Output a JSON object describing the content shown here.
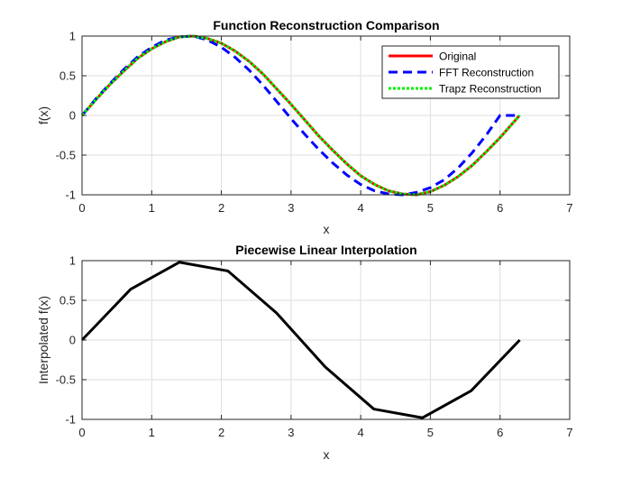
{
  "chart_data": [
    {
      "type": "line",
      "title": "Function Reconstruction Comparison",
      "xlabel": "x",
      "ylabel": "f(x)",
      "xlim": [
        0,
        7
      ],
      "ylim": [
        -1,
        1
      ],
      "xticks": [
        0,
        1,
        2,
        3,
        4,
        5,
        6,
        7
      ],
      "xtick_labels": [
        "0",
        "1",
        "2",
        "3",
        "4",
        "5",
        "6",
        "7"
      ],
      "yticks": [
        1,
        0.5,
        0,
        -0.5,
        -1
      ],
      "ytick_labels": [
        "1",
        "0.5",
        "0",
        "-0.5",
        "-1"
      ],
      "grid": true,
      "legend_position": "top-right",
      "series": [
        {
          "name": "Original",
          "color": "#ff0000",
          "style": "solid",
          "x": [
            0,
            0.2,
            0.4,
            0.6,
            0.8,
            1.0,
            1.2,
            1.4,
            1.6,
            1.8,
            2.0,
            2.2,
            2.4,
            2.6,
            2.8,
            3.0,
            3.2,
            3.4,
            3.6,
            3.8,
            4.0,
            4.2,
            4.4,
            4.6,
            4.8,
            5.0,
            5.2,
            5.4,
            5.6,
            5.8,
            6.0,
            6.28
          ],
          "y": [
            0,
            0.2,
            0.39,
            0.56,
            0.72,
            0.84,
            0.93,
            0.99,
            1.0,
            0.97,
            0.91,
            0.81,
            0.68,
            0.52,
            0.33,
            0.14,
            -0.06,
            -0.26,
            -0.44,
            -0.61,
            -0.76,
            -0.87,
            -0.95,
            -0.99,
            -1.0,
            -0.96,
            -0.88,
            -0.77,
            -0.63,
            -0.46,
            -0.28,
            0
          ]
        },
        {
          "name": "FFT Reconstruction",
          "color": "#0000ff",
          "style": "dashed",
          "x": [
            0,
            0.2,
            0.4,
            0.6,
            0.8,
            1.0,
            1.2,
            1.4,
            1.6,
            1.8,
            2.0,
            2.2,
            2.4,
            2.6,
            2.8,
            3.0,
            3.2,
            3.4,
            3.6,
            3.8,
            4.0,
            4.2,
            4.4,
            4.6,
            4.8,
            5.0,
            5.2,
            5.4,
            5.6,
            5.8,
            6.0,
            6.28
          ],
          "y": [
            0,
            0.21,
            0.4,
            0.58,
            0.74,
            0.86,
            0.95,
            0.99,
            1.0,
            0.95,
            0.86,
            0.73,
            0.57,
            0.38,
            0.17,
            -0.04,
            -0.24,
            -0.43,
            -0.6,
            -0.75,
            -0.87,
            -0.95,
            -0.99,
            -1.0,
            -0.97,
            -0.91,
            -0.81,
            -0.66,
            -0.47,
            -0.25,
            0,
            0
          ]
        },
        {
          "name": "Trapz Reconstruction",
          "color": "#00ee00",
          "style": "dotted",
          "x": [
            0,
            0.2,
            0.4,
            0.6,
            0.8,
            1.0,
            1.2,
            1.4,
            1.6,
            1.8,
            2.0,
            2.2,
            2.4,
            2.6,
            2.8,
            3.0,
            3.2,
            3.4,
            3.6,
            3.8,
            4.0,
            4.2,
            4.4,
            4.6,
            4.8,
            5.0,
            5.2,
            5.4,
            5.6,
            5.8,
            6.0,
            6.28
          ],
          "y": [
            0,
            0.2,
            0.39,
            0.56,
            0.72,
            0.84,
            0.93,
            0.99,
            1.0,
            0.97,
            0.91,
            0.81,
            0.68,
            0.52,
            0.33,
            0.14,
            -0.06,
            -0.26,
            -0.44,
            -0.61,
            -0.76,
            -0.87,
            -0.95,
            -0.99,
            -1.0,
            -0.96,
            -0.88,
            -0.77,
            -0.63,
            -0.46,
            -0.28,
            0
          ]
        }
      ]
    },
    {
      "type": "line",
      "title": "Piecewise Linear Interpolation",
      "xlabel": "x",
      "ylabel": "Interpolated f(x)",
      "xlim": [
        0,
        7
      ],
      "ylim": [
        -1,
        1
      ],
      "xticks": [
        0,
        1,
        2,
        3,
        4,
        5,
        6,
        7
      ],
      "xtick_labels": [
        "0",
        "1",
        "2",
        "3",
        "4",
        "5",
        "6",
        "7"
      ],
      "yticks": [
        1,
        0.5,
        0,
        -0.5,
        -1
      ],
      "ytick_labels": [
        "1",
        "0.5",
        "0",
        "-0.5",
        "-1"
      ],
      "grid": true,
      "series": [
        {
          "color": "#000000",
          "style": "solid",
          "x": [
            0,
            0.698,
            1.396,
            2.094,
            2.793,
            3.491,
            4.189,
            4.887,
            5.585,
            6.283
          ],
          "y": [
            0,
            0.64,
            0.98,
            0.87,
            0.34,
            -0.34,
            -0.87,
            -0.98,
            -0.64,
            0
          ]
        }
      ]
    }
  ]
}
